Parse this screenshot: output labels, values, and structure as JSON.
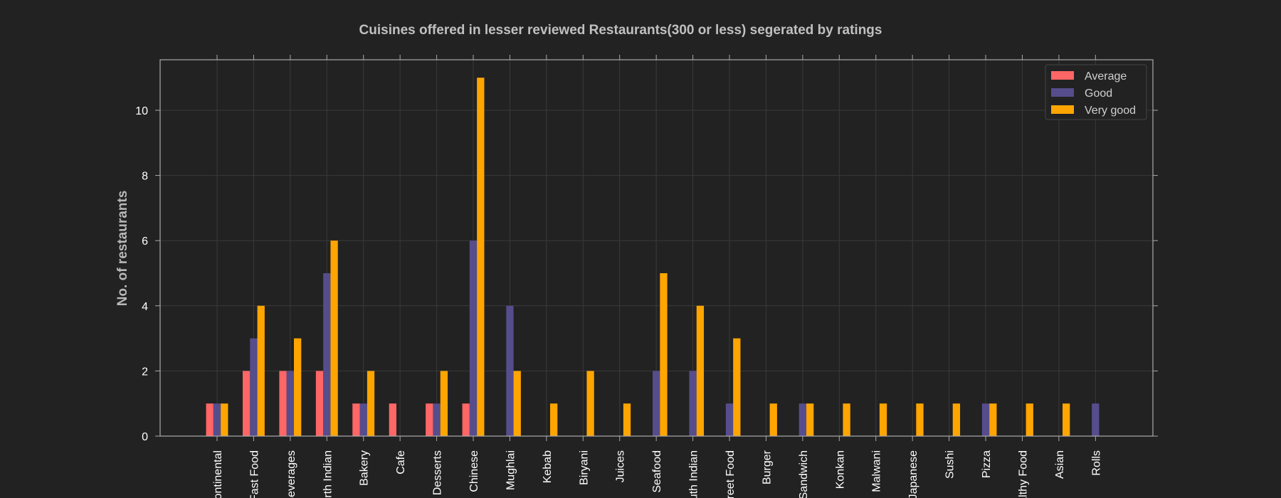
{
  "chart_data": {
    "type": "bar",
    "title": "Cuisines offered in lesser reviewed Restaurants(300 or less) segerated by ratings",
    "xlabel": "",
    "ylabel": "No. of restaurants",
    "ylim": [
      0,
      11.55
    ],
    "yticks": [
      0,
      2,
      4,
      6,
      8,
      10
    ],
    "grid": true,
    "legend_position": "top-right",
    "categories": [
      "Continental",
      "Fast Food",
      "Beverages",
      "North Indian",
      "Bakery",
      "Cafe",
      "Desserts",
      "Chinese",
      "Mughlai",
      "Kebab",
      "Biryani",
      "Juices",
      "Seafood",
      "South Indian",
      "Street Food",
      "Burger",
      "Sandwich",
      "Konkan",
      "Malwani",
      "Japanese",
      "Sushi",
      "Pizza",
      "Healthy Food",
      "Asian",
      "Rolls"
    ],
    "series": [
      {
        "name": "Average",
        "color": "#ff6666",
        "values": [
          1,
          2,
          2,
          2,
          1,
          1,
          1,
          1,
          0,
          0,
          0,
          0,
          0,
          0,
          0,
          0,
          0,
          0,
          0,
          0,
          0,
          0,
          0,
          0,
          0
        ]
      },
      {
        "name": "Good",
        "color": "#564d8d",
        "values": [
          1,
          3,
          2,
          5,
          1,
          0,
          1,
          6,
          4,
          0,
          0,
          0,
          2,
          2,
          1,
          0,
          1,
          0,
          0,
          0,
          0,
          1,
          0,
          0,
          1
        ]
      },
      {
        "name": "Very good",
        "color": "#ffa500",
        "values": [
          1,
          4,
          3,
          6,
          2,
          0,
          2,
          11,
          2,
          1,
          2,
          1,
          5,
          4,
          3,
          1,
          1,
          1,
          1,
          1,
          1,
          1,
          1,
          1,
          0
        ]
      }
    ],
    "colors": {
      "background": "#222222",
      "grid": "#3a3a3a",
      "axes": "#aaaaaa"
    }
  }
}
